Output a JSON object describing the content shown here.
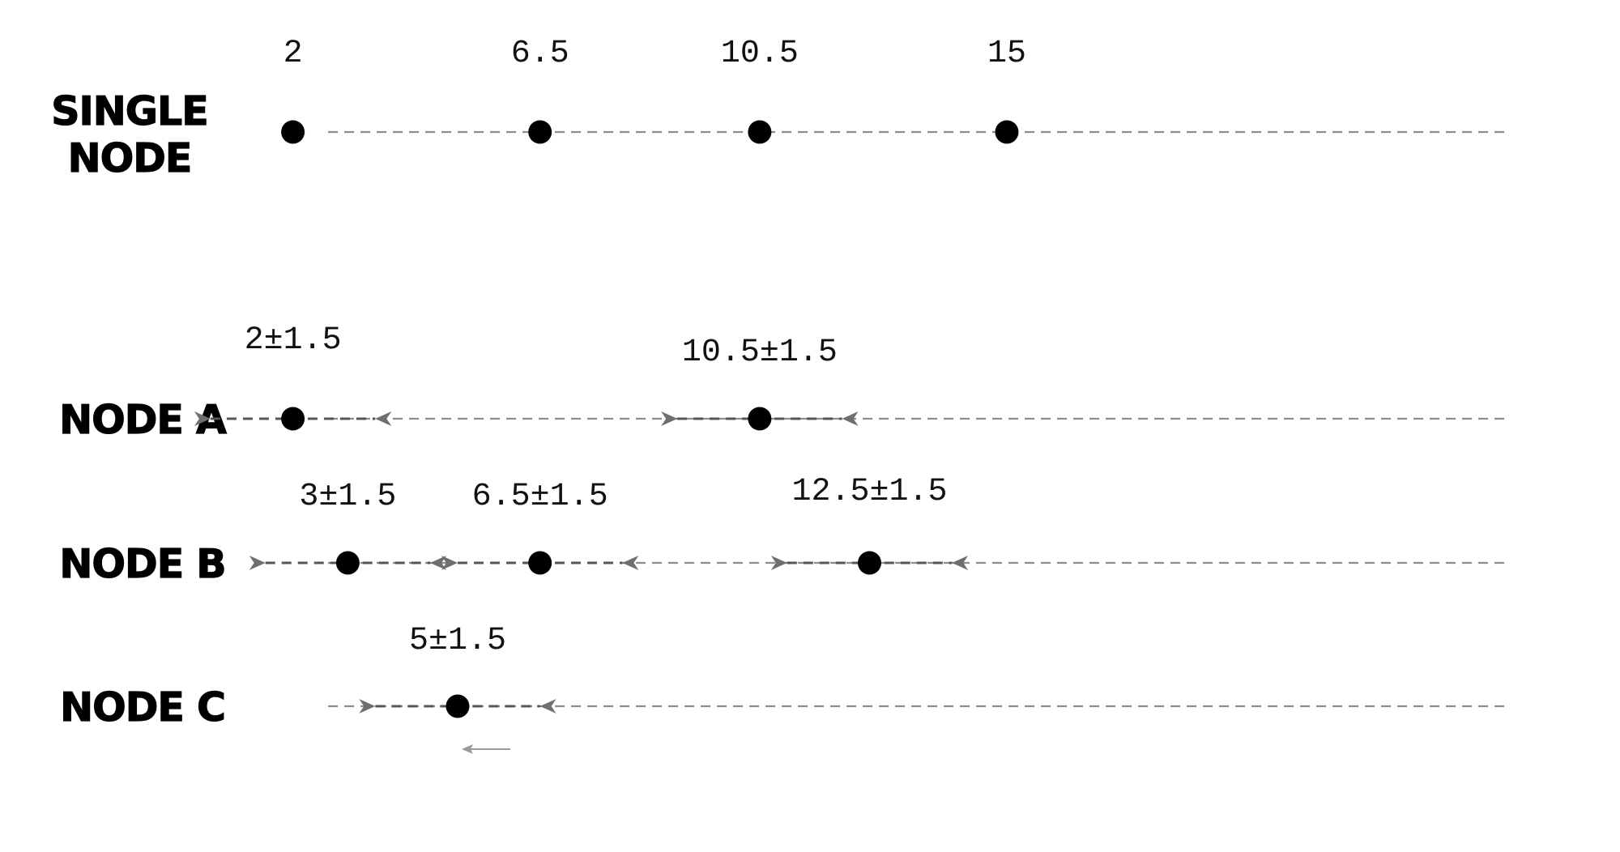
{
  "rows": [
    {
      "id": "single-node",
      "label_lines": [
        "SINGLE",
        "NODE"
      ],
      "points": [
        {
          "value": 2,
          "label": "2"
        },
        {
          "value": 6.5,
          "label": "6.5"
        },
        {
          "value": 10.5,
          "label": "10.5"
        },
        {
          "value": 15,
          "label": "15"
        }
      ]
    },
    {
      "id": "node-a",
      "label_lines": [
        "NODE A"
      ],
      "points": [
        {
          "value": 2,
          "uncertainty": 1.5,
          "label": "2±1.5"
        },
        {
          "value": 10.5,
          "uncertainty": 1.5,
          "label": "10.5±1.5"
        }
      ]
    },
    {
      "id": "node-b",
      "label_lines": [
        "NODE B"
      ],
      "points": [
        {
          "value": 3,
          "uncertainty": 1.5,
          "label": "3±1.5"
        },
        {
          "value": 6.5,
          "uncertainty": 1.5,
          "label": "6.5±1.5"
        },
        {
          "value": 12.5,
          "uncertainty": 1.5,
          "label": "12.5±1.5"
        }
      ]
    },
    {
      "id": "node-c",
      "label_lines": [
        "NODE C"
      ],
      "points": [
        {
          "value": 5,
          "uncertainty": 1.5,
          "label": "5±1.5"
        }
      ]
    }
  ],
  "direction_hint": "left"
}
